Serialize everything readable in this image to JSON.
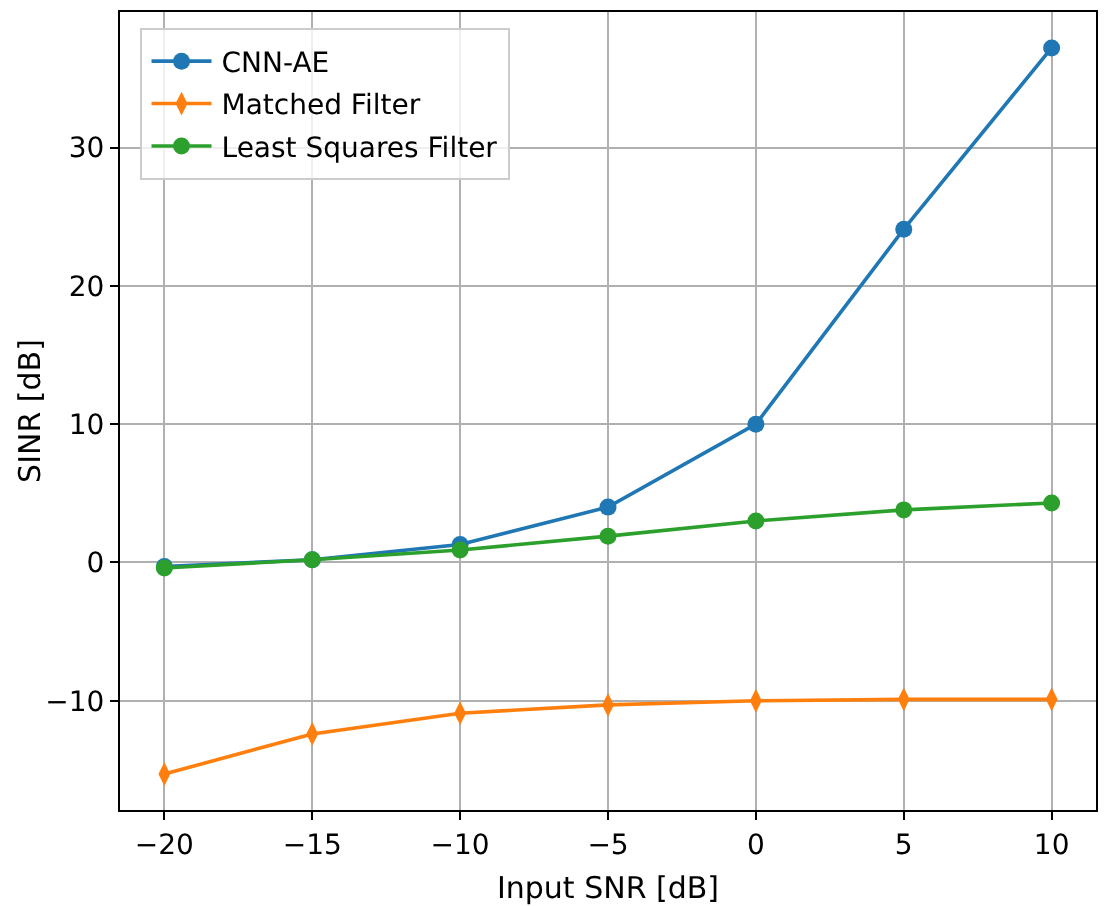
{
  "chart_data": {
    "type": "line",
    "xlabel": "Input SNR [dB]",
    "ylabel": "SINR [dB]",
    "x": [
      -20,
      -15,
      -10,
      -5,
      0,
      5,
      10
    ],
    "series": [
      {
        "name": "CNN-AE",
        "color": "#1f77b4",
        "marker": "circle",
        "values": [
          -0.3,
          0.2,
          1.3,
          4.0,
          10.0,
          24.1,
          37.2
        ]
      },
      {
        "name": "Matched Filter",
        "color": "#ff7f0e",
        "marker": "diamond",
        "values": [
          -15.3,
          -12.4,
          -10.9,
          -10.3,
          -10.0,
          -9.9,
          -9.9
        ]
      },
      {
        "name": "Least Squares Filter",
        "color": "#2ca02c",
        "marker": "circle",
        "values": [
          -0.4,
          0.2,
          0.9,
          1.9,
          3.0,
          3.8,
          4.3
        ]
      }
    ],
    "xlim": [
      -21.5,
      11.5
    ],
    "xticks": [
      {
        "value": -20,
        "label": "−20"
      },
      {
        "value": -15,
        "label": "−15"
      },
      {
        "value": -10,
        "label": "−10"
      },
      {
        "value": -5,
        "label": "−5"
      },
      0,
      5,
      10
    ],
    "ylim": [
      -17.9,
      39.8
    ],
    "yticks": [
      {
        "value": -10,
        "label": "−10"
      },
      0,
      10,
      20,
      30
    ],
    "grid": true,
    "legend": "top left",
    "line_style": "solid"
  }
}
